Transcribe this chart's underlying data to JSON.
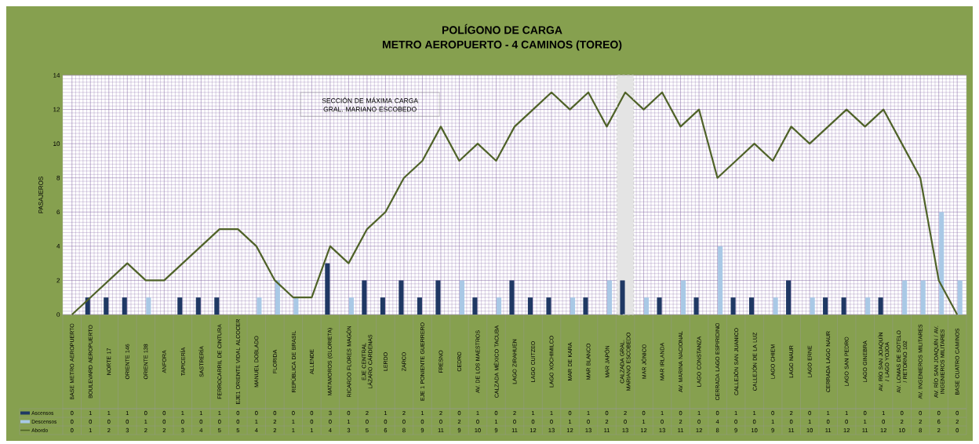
{
  "chart_data": {
    "type": "bar",
    "title": "POLÍGONO DE CARGA",
    "subtitle": "METRO AEROPUERTO  - 4 CAMINOS (TOREO)",
    "ylabel": "PASAJEROS",
    "categories": [
      "BASE METRO AEROPUERTO",
      "BOULEVARD AEROPUERTO",
      "NORTE 17",
      "ORIENTE 146",
      "ORIENTE 138",
      "ANFORA",
      "TAPICERÍA",
      "SASTRERÍA",
      "FERROCARRIL DE CINTURA",
      "EJE1 ORIENTE VIDAL ALCOCER",
      "MANUEL DOBLADO",
      "FLORIDA",
      "REPÚBLICA DE BRASIL",
      "ALLENDE",
      "MATAMOROS (GLORIETA)",
      "RICARDO FLORES MAGÓN",
      "EJE CENTRAL LÁZARO CÁRDENAS",
      "LERDO",
      "ZARCO",
      "EJE 1 PONIENTE GUERRERO",
      "FRESNO",
      "CEDRO",
      "AV. DE LOS MAESTROS",
      "CALZADA MÉXICO TACUBA",
      "LAGO ZIRAHUEN",
      "LAGO CUITZEO",
      "LAGO XOCHIMILCO",
      "MAR DE KARA",
      "MAR BLANCO",
      "MAR JAPÓN",
      "CALZADA GRAL. MARIANO ESCOBEDO",
      "MAR JÓNICO",
      "MAR IRLANDA",
      "AV. MARINA NACIONAL",
      "LAGO CONSTANZA",
      "CERRADA LAGO ESPIRIDINO",
      "CALLEJÓN SAN JUANICO",
      "CALLEJÓN DE LA LUZ",
      "LAGO CHIEM",
      "LAGO NAUR",
      "LAGO ERNE",
      "CERRADA LAGO NAUR",
      "LAGO SAN PEDRO",
      "LAGO GINEBRA",
      "AV. RÍO SAN JOAQUÍN / LAGO YOJOA",
      "AV. LOMAS DE SOTELO / RETORNO 102",
      "AV. INGENIEROS MILITARES",
      "AV. RÍO SAN JOAQUÍN / AV. INGENIEROS MILITARES",
      "BASE CUATRO CAMINOS"
    ],
    "series": [
      {
        "name": "Ascensos",
        "color": "#1f3864",
        "values": [
          0,
          1,
          1,
          1,
          0,
          0,
          1,
          1,
          1,
          0,
          0,
          0,
          0,
          0,
          3,
          0,
          2,
          1,
          2,
          1,
          2,
          0,
          1,
          0,
          2,
          1,
          1,
          0,
          1,
          0,
          2,
          0,
          1,
          0,
          1,
          0,
          1,
          1,
          0,
          2,
          0,
          1,
          1,
          0,
          1,
          0,
          0,
          0,
          0
        ]
      },
      {
        "name": "Descensos",
        "color": "#a9c9e6",
        "values": [
          0,
          0,
          0,
          0,
          1,
          0,
          0,
          0,
          0,
          0,
          1,
          2,
          1,
          0,
          0,
          1,
          0,
          0,
          0,
          0,
          0,
          2,
          0,
          1,
          0,
          0,
          0,
          1,
          0,
          2,
          0,
          1,
          0,
          2,
          0,
          4,
          0,
          0,
          1,
          0,
          1,
          0,
          0,
          1,
          0,
          2,
          2,
          6,
          2
        ]
      },
      {
        "name": "Abordo",
        "type": "line",
        "color": "#4f6228",
        "values": [
          0,
          1,
          2,
          3,
          2,
          2,
          3,
          4,
          5,
          5,
          4,
          2,
          1,
          1,
          4,
          3,
          5,
          6,
          8,
          9,
          11,
          9,
          10,
          9,
          11,
          12,
          13,
          12,
          13,
          11,
          13,
          12,
          13,
          11,
          12,
          8,
          9,
          10,
          9,
          11,
          10,
          11,
          12,
          11,
          12,
          10,
          8,
          2,
          0
        ]
      }
    ],
    "ylim": [
      0,
      14
    ],
    "yticks": [
      0,
      2,
      4,
      6,
      8,
      10,
      12,
      14
    ],
    "grid": true,
    "legend": "bottom",
    "data_labels": true,
    "bands": [
      {
        "axis": "x",
        "from": "CALZADA GRAL. MARIANO ESCOBEDO",
        "to": "CALZADA GRAL. MARIANO ESCOBEDO",
        "color": "#e4e4e4"
      }
    ],
    "annotations": [
      "SECCIÓN DE MÁXIMA CARGA GRAL. MARIANO ESCOBEDO"
    ]
  }
}
